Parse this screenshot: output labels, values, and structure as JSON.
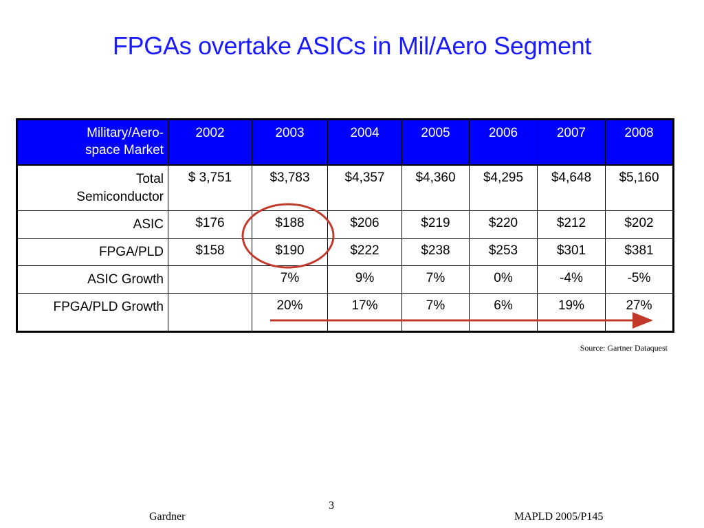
{
  "slide": {
    "title": "FPGAs overtake ASICs in Mil/Aero Segment",
    "source": "Source: Gartner Dataquest",
    "page_number": "3",
    "footer_left": "Gardner",
    "footer_right": "MAPLD 2005/P145"
  },
  "table": {
    "corner_header_line1": "Military/Aero-",
    "corner_header_line2": "space Market",
    "years": [
      "2002",
      "2003",
      "2004",
      "2005",
      "2006",
      "2007",
      "2008"
    ],
    "rows": [
      {
        "label_line1": "Total",
        "label_line2": "Semiconductor",
        "values": [
          "$ 3,751",
          "$3,783",
          "$4,357",
          "$4,360",
          "$4,295",
          "$4,648",
          "$5,160"
        ]
      },
      {
        "label": "ASIC",
        "values": [
          "$176",
          "$188",
          "$206",
          "$219",
          "$220",
          "$212",
          "$202"
        ]
      },
      {
        "label": "FPGA/PLD",
        "values": [
          "$158",
          "$190",
          "$222",
          "$238",
          "$253",
          "$301",
          "$381"
        ]
      },
      {
        "label": "ASIC Growth",
        "values": [
          "",
          "7%",
          "9%",
          "7%",
          "0%",
          "-4%",
          "-5%"
        ]
      },
      {
        "label": "FPGA/PLD Growth",
        "values": [
          "",
          "20%",
          "17%",
          "7%",
          "6%",
          "19%",
          "27%"
        ]
      }
    ]
  },
  "annotations": {
    "highlight_color": "#c0392b",
    "header_color": "#0000ff",
    "title_color": "#1a1aff"
  }
}
